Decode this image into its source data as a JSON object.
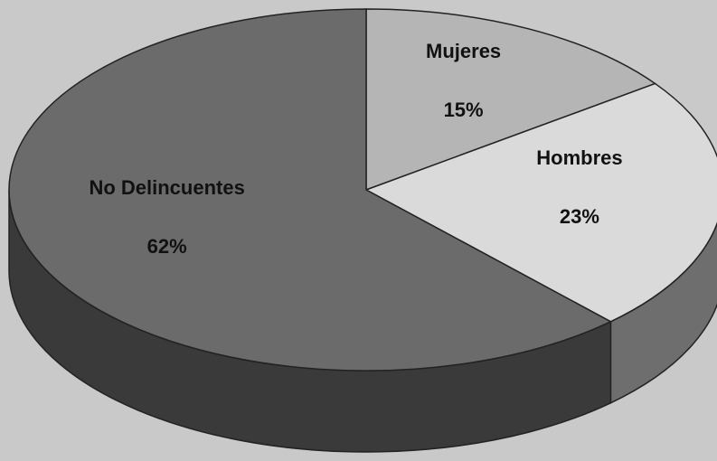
{
  "chart_data": {
    "type": "pie",
    "categories": [
      "Mujeres",
      "Hombres",
      "No Delincuentes"
    ],
    "values": [
      15,
      23,
      62
    ],
    "value_labels": [
      "15%",
      "23%",
      "62%"
    ],
    "colors": [
      "#b5b5b5",
      "#dadada",
      "#6b6b6b"
    ],
    "side_colors": [
      "#7a7a7a",
      "#6e6e6e",
      "#3a3a3a"
    ]
  }
}
